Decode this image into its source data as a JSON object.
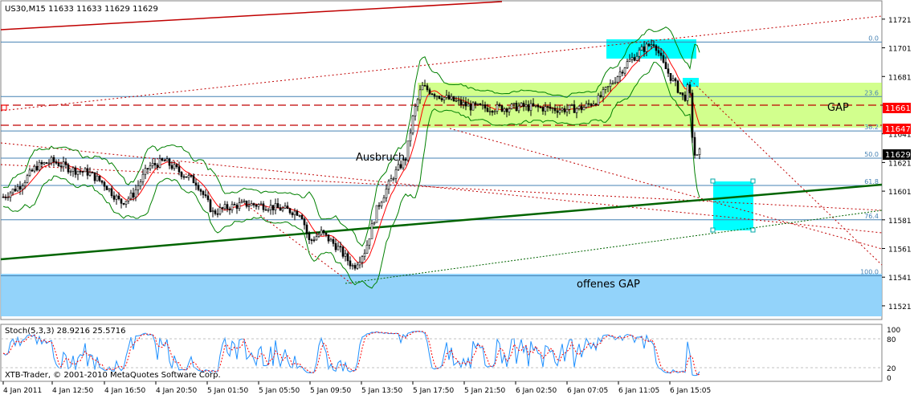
{
  "header": {
    "symbol_info": "US30,M15  11633 11633 11629 11629"
  },
  "indicator": {
    "label": "Stoch(5,3,3) 28.9216 25.5716",
    "levels": [
      "100",
      "80",
      "20",
      "0"
    ]
  },
  "footer": {
    "copyright": "XTB-Trader, © 2001-2010 MetaQuotes Software Corp."
  },
  "annotations": {
    "breakout": "Ausbruch",
    "gap": "GAP",
    "open_gap": "offenes GAP"
  },
  "price_labels": {
    "level_1": "11661",
    "level_2": "11647",
    "current": "11629"
  },
  "colors": {
    "bull": "#ffffff",
    "bear": "#000000",
    "grid": "#c0c0c0",
    "bands": "#008000",
    "ma": "#ff0000",
    "trend": "#006400",
    "zone_green": "#adff2f",
    "zone_cyan": "#00ffff",
    "zone_blue": "#87cefa",
    "fib": "#4682b4",
    "label_red": "#ff0000"
  },
  "chart_data": {
    "type": "candlestick",
    "price_axis": [
      "11721",
      "11701",
      "11681",
      "11661",
      "11641",
      "11621",
      "11601",
      "11581",
      "11561",
      "11541",
      "11521"
    ],
    "y_range": [
      11512,
      11731
    ],
    "time_axis": [
      "4 Jan 2011",
      "4 Jan 12:50",
      "4 Jan 16:50",
      "4 Jan 20:50",
      "5 Jan 01:50",
      "5 Jan 05:50",
      "5 Jan 09:50",
      "5 Jan 13:50",
      "5 Jan 17:50",
      "5 Jan 21:50",
      "6 Jan 02:50",
      "6 Jan 07:05",
      "6 Jan 11:05",
      "6 Jan 15:05"
    ],
    "fib_levels": [
      {
        "label": "0.0",
        "price": 11705
      },
      {
        "label": "23.6",
        "price": 11667
      },
      {
        "label": "38.2",
        "price": 11643
      },
      {
        "label": "50.0",
        "price": 11624
      },
      {
        "label": "61.8",
        "price": 11605
      },
      {
        "label": "76.4",
        "price": 11581
      },
      {
        "label": "100.0",
        "price": 11542
      }
    ],
    "horizontal_levels": [
      11661,
      11647
    ],
    "last_price": 11629,
    "zones": [
      {
        "name": "gap-zone",
        "price_top": 11674,
        "price_bottom": 11650
      },
      {
        "name": "open-gap-zone",
        "price_top": 11547,
        "price_bottom": 11518
      },
      {
        "name": "top-box",
        "price_top": 11709,
        "price_bottom": 11697
      },
      {
        "name": "small-box",
        "price_top": 11679,
        "price_bottom": 11675
      },
      {
        "name": "target-box",
        "price_top": 11611,
        "price_bottom": 11578
      }
    ],
    "stochastic": {
      "k": 28.9216,
      "d": 25.5716,
      "levels": [
        100,
        80,
        20,
        0
      ]
    }
  }
}
